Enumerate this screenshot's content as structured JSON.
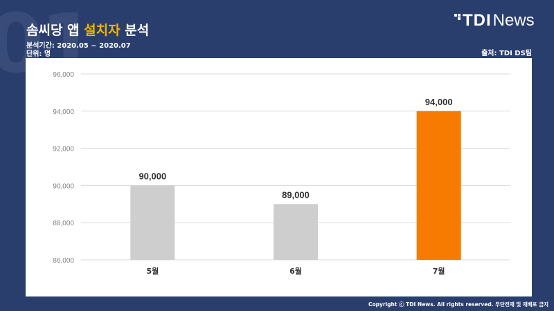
{
  "title": {
    "part1": "솜씨당 앱 ",
    "highlight": "설치자",
    "part2": " 분석"
  },
  "period": "분석기간: 2020.05 ~ 2020.07",
  "unit": "단위: 명",
  "source": "출처: TDI DS팀",
  "logo": {
    "brand": "TDI",
    "suffix": "News"
  },
  "watermark": "01",
  "copyright": "Copyright ⓒ TDI News. All rights reserved. 무단전재 및 재배포 금지",
  "colors": {
    "background": "#2a3e6e",
    "highlight": "#f7b500",
    "bar_default": "#cfcece",
    "bar_highlight": "#f77b00"
  },
  "chart_data": {
    "type": "bar",
    "categories": [
      "5월",
      "6월",
      "7월"
    ],
    "values": [
      90000,
      89000,
      94000
    ],
    "highlight_index": 2,
    "ylim": [
      86000,
      96000
    ],
    "yticks": [
      86000,
      88000,
      90000,
      92000,
      94000,
      96000
    ],
    "title": "",
    "xlabel": "",
    "ylabel": "",
    "grid": true,
    "legend": "none"
  }
}
